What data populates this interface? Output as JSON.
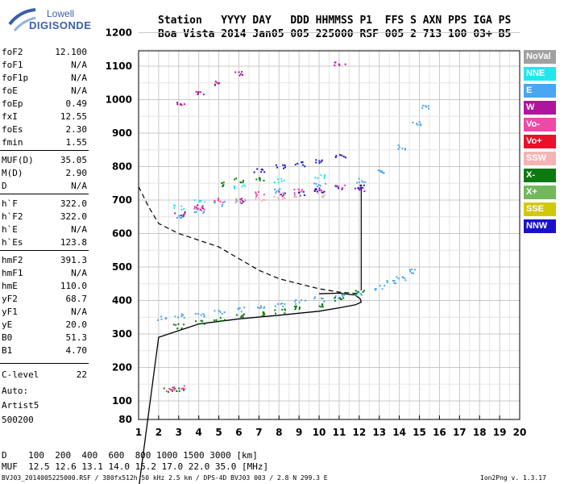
{
  "logo": {
    "line1": "Lowell",
    "line2": "DIGISONDE",
    "color": "#3a5fa8"
  },
  "header": {
    "row1": "Station   YYYY DAY   DDD HHMMSS P1  FFS S AXN PPS IGA PS",
    "row2": "Boa Vista 2014 Jan05 005 225000 RSF 005 2 713 100 03+ B5"
  },
  "params": [
    {
      "name": "foF2",
      "value": "12.100"
    },
    {
      "name": "foF1",
      "value": "N/A"
    },
    {
      "name": "foF1p",
      "value": "N/A"
    },
    {
      "name": "foE",
      "value": "N/A"
    },
    {
      "name": "foEp",
      "value": "0.49"
    },
    {
      "name": "fxI",
      "value": "12.55"
    },
    {
      "name": "foEs",
      "value": "2.30"
    },
    {
      "name": "fmin",
      "value": "1.55"
    },
    {
      "name": "MUF(D)",
      "value": "35.05"
    },
    {
      "name": "M(D)",
      "value": "2.90"
    },
    {
      "name": "D",
      "value": "N/A"
    },
    {
      "name": "h`F",
      "value": "322.0"
    },
    {
      "name": "h`F2",
      "value": "322.0"
    },
    {
      "name": "h`E",
      "value": "N/A"
    },
    {
      "name": "h`Es",
      "value": "123.8"
    },
    {
      "name": "hmF2",
      "value": "391.3"
    },
    {
      "name": "hmF1",
      "value": "N/A"
    },
    {
      "name": "hmE",
      "value": "110.0"
    },
    {
      "name": "yF2",
      "value": "68.7"
    },
    {
      "name": "yF1",
      "value": "N/A"
    },
    {
      "name": "yE",
      "value": "20.0"
    },
    {
      "name": "B0",
      "value": "51.3"
    },
    {
      "name": "B1",
      "value": "4.70"
    },
    {
      "name": "C-level",
      "value": "22"
    }
  ],
  "auto": {
    "line1": "Auto:",
    "line2": "Artist5",
    "line3": "500200"
  },
  "legend": [
    {
      "label": "NoVal",
      "color": "#a0a0a0"
    },
    {
      "label": "NNE",
      "color": "#22e6ee"
    },
    {
      "label": "E",
      "color": "#4aa6f0"
    },
    {
      "label": "W",
      "color": "#b0149e"
    },
    {
      "label": "Vo-",
      "color": "#ec4aa6"
    },
    {
      "label": "Vo+",
      "color": "#e8102a"
    },
    {
      "label": "SSW",
      "color": "#f4b4b4"
    },
    {
      "label": "X-",
      "color": "#0c7a10"
    },
    {
      "label": "X+",
      "color": "#72b85c"
    },
    {
      "label": "SSE",
      "color": "#d2c80a"
    },
    {
      "label": "NNW",
      "color": "#1a12c8"
    }
  ],
  "bottom": {
    "row1": "D    100  200  400  600  800 1000 1500 3000 [km]",
    "row2": "MUF  12.5 12.6 13.1 14.0 15.2 17.0 22.0 35.0 [MHz]"
  },
  "footer": {
    "left": "BVJ03_2014005225000.RSF / 380fx512h 50 kHz 2.5 km / DPS-4D BVJ03 003 / 2.8 N 299.3 E",
    "right": "Ion2Png v. 1.3.17"
  },
  "chart_data": {
    "type": "scatter",
    "xlabel": "",
    "ylabel": "",
    "xlim": [
      1,
      20
    ],
    "ylim": [
      80,
      1200
    ],
    "x_ticks": [
      1,
      2,
      3,
      4,
      5,
      6,
      7,
      8,
      9,
      10,
      11,
      12,
      13,
      14,
      15,
      16,
      17,
      18,
      19,
      20
    ],
    "y_ticks": [
      80,
      100,
      200,
      300,
      400,
      500,
      600,
      700,
      800,
      900,
      1000,
      1100,
      1200
    ],
    "grid": true,
    "series": [
      {
        "name": "E",
        "color": "#4aa6f0",
        "points": [
          [
            2.2,
            350
          ],
          [
            3,
            355
          ],
          [
            4,
            360
          ],
          [
            5,
            368
          ],
          [
            6,
            375
          ],
          [
            7,
            382
          ],
          [
            8,
            390
          ],
          [
            9,
            398
          ],
          [
            10,
            405
          ],
          [
            11,
            415
          ],
          [
            12,
            425
          ],
          [
            13,
            440
          ],
          [
            13.5,
            460
          ],
          [
            14,
            470
          ],
          [
            14.5,
            490
          ],
          [
            3,
            650
          ],
          [
            4,
            670
          ],
          [
            5,
            690
          ],
          [
            6,
            700
          ],
          [
            8,
            730
          ],
          [
            10,
            745
          ],
          [
            12,
            760
          ],
          [
            13,
            790
          ],
          [
            14,
            860
          ],
          [
            14.8,
            930
          ],
          [
            15.2,
            980
          ]
        ]
      },
      {
        "name": "X-",
        "color": "#0c7a10",
        "points": [
          [
            3,
            325
          ],
          [
            4,
            335
          ],
          [
            5,
            345
          ],
          [
            6,
            355
          ],
          [
            7,
            362
          ],
          [
            8,
            370
          ],
          [
            9,
            378
          ],
          [
            10,
            390
          ],
          [
            11,
            405
          ],
          [
            12,
            425
          ],
          [
            2.5,
            135
          ],
          [
            3,
            137
          ],
          [
            5,
            750
          ],
          [
            6,
            760
          ],
          [
            7,
            765
          ]
        ]
      },
      {
        "name": "W",
        "color": "#b0149e",
        "points": [
          [
            3,
            990
          ],
          [
            4,
            1020
          ],
          [
            5,
            1050
          ],
          [
            6,
            1080
          ],
          [
            3,
            660
          ],
          [
            4,
            680
          ],
          [
            6,
            700
          ],
          [
            8,
            720
          ],
          [
            10,
            730
          ],
          [
            12,
            735
          ],
          [
            11,
            1110
          ]
        ]
      },
      {
        "name": "NNW",
        "color": "#1a12c8",
        "points": [
          [
            7,
            790
          ],
          [
            8,
            800
          ],
          [
            9,
            810
          ],
          [
            10,
            820
          ],
          [
            11,
            830
          ],
          [
            9,
            720
          ],
          [
            10,
            730
          ],
          [
            11,
            740
          ],
          [
            12,
            745
          ]
        ]
      },
      {
        "name": "Vo-",
        "color": "#ec4aa6",
        "points": [
          [
            2.5,
            138
          ],
          [
            3,
            140
          ],
          [
            4,
            680
          ],
          [
            5,
            700
          ],
          [
            7,
            720
          ],
          [
            9,
            730
          ],
          [
            11,
            740
          ]
        ]
      },
      {
        "name": "SSW",
        "color": "#f4b4b4",
        "points": [
          [
            6,
            700
          ],
          [
            7,
            705
          ],
          [
            8,
            710
          ],
          [
            9,
            712
          ],
          [
            10,
            715
          ]
        ]
      },
      {
        "name": "NNE",
        "color": "#22e6ee",
        "points": [
          [
            3,
            680
          ],
          [
            4,
            700
          ],
          [
            6,
            740
          ],
          [
            8,
            760
          ],
          [
            10,
            770
          ]
        ]
      }
    ],
    "profile_curve": [
      [
        0.1,
        5
      ],
      [
        2,
        290
      ],
      [
        4,
        330
      ],
      [
        6,
        345
      ],
      [
        8,
        356
      ],
      [
        10,
        368
      ],
      [
        11,
        378
      ],
      [
        11.8,
        387
      ],
      [
        12.1,
        395
      ],
      [
        12.05,
        405
      ],
      [
        11.8,
        416
      ],
      [
        11,
        422
      ],
      [
        10,
        420
      ]
    ],
    "dashed_curve": [
      [
        1,
        740
      ],
      [
        1.5,
        680
      ],
      [
        2,
        630
      ],
      [
        3,
        600
      ],
      [
        4,
        580
      ],
      [
        5,
        560
      ],
      [
        6,
        525
      ],
      [
        7,
        490
      ],
      [
        8,
        465
      ],
      [
        9,
        450
      ],
      [
        10,
        435
      ],
      [
        11,
        425
      ],
      [
        12,
        420
      ]
    ],
    "vertical_line": [
      [
        12.1,
        430
      ],
      [
        12.1,
        740
      ]
    ]
  }
}
